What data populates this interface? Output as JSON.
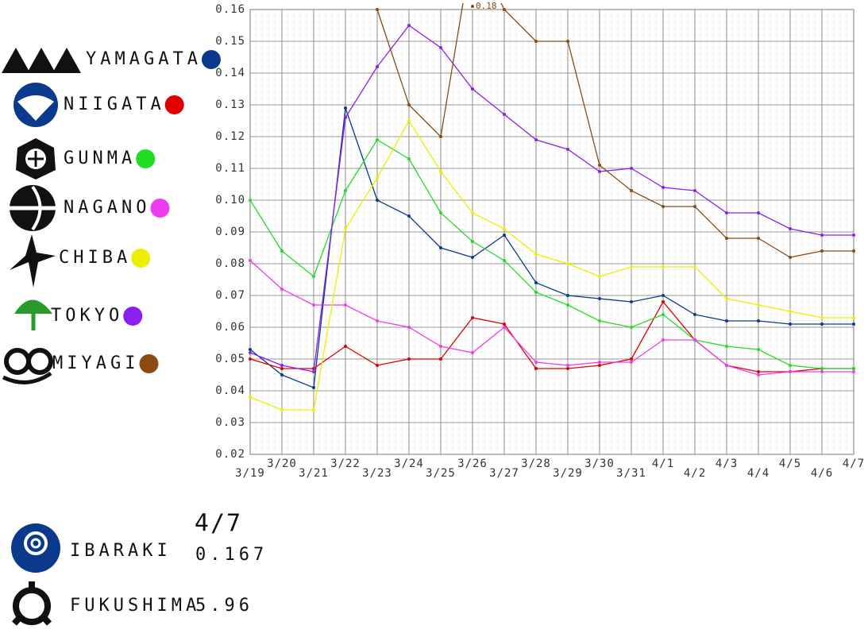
{
  "chart_data": {
    "type": "line",
    "categories": [
      "3/19",
      "3/20",
      "3/21",
      "3/22",
      "3/23",
      "3/24",
      "3/25",
      "3/26",
      "3/27",
      "3/28",
      "3/29",
      "3/30",
      "3/31",
      "4/1",
      "4/2",
      "4/3",
      "4/4",
      "4/5",
      "4/6",
      "4/7"
    ],
    "ylim": [
      0.02,
      0.16
    ],
    "yticks": [
      0.02,
      0.03,
      0.04,
      0.05,
      0.06,
      0.07,
      0.08,
      0.09,
      {
        "value": 0.1,
        "label": "0.10"
      },
      0.11,
      0.12,
      0.13,
      0.14,
      0.15,
      0.16
    ],
    "grid": true,
    "legend": "left",
    "series": [
      {
        "name": "YAMAGATA",
        "color": "#0b3a8c",
        "values": [
          0.053,
          0.045,
          0.041,
          0.129,
          0.1,
          0.095,
          0.085,
          0.082,
          0.089,
          0.074,
          0.07,
          0.069,
          0.068,
          0.07,
          0.064,
          0.062,
          0.062,
          0.061,
          0.061,
          0.061
        ]
      },
      {
        "name": "NIIGATA",
        "color": "#e00000",
        "values": [
          0.05,
          0.047,
          0.047,
          0.054,
          0.048,
          0.05,
          0.05,
          0.063,
          0.061,
          0.047,
          0.047,
          0.048,
          0.05,
          0.068,
          0.056,
          0.048,
          0.046,
          0.046,
          0.047,
          0.047
        ]
      },
      {
        "name": "GUNMA",
        "color": "#22dd22",
        "values": [
          0.1,
          0.084,
          0.076,
          0.103,
          0.119,
          0.113,
          0.096,
          0.087,
          0.081,
          0.071,
          0.067,
          0.062,
          0.06,
          0.064,
          0.056,
          0.054,
          0.053,
          0.048,
          0.047,
          0.047
        ]
      },
      {
        "name": "NAGANO",
        "color": "#f03cf0",
        "values": [
          0.081,
          0.072,
          0.067,
          0.067,
          0.062,
          0.06,
          0.054,
          0.052,
          0.06,
          0.049,
          0.048,
          0.049,
          0.049,
          0.056,
          0.056,
          0.048,
          0.045,
          0.046,
          0.046,
          0.046
        ]
      },
      {
        "name": "CHIBA",
        "color": "#eeee00",
        "values": [
          0.038,
          0.034,
          0.034,
          0.091,
          0.107,
          0.125,
          0.109,
          0.096,
          0.091,
          0.083,
          0.08,
          0.076,
          0.079,
          0.079,
          0.079,
          0.069,
          0.067,
          0.065,
          0.063,
          0.063
        ]
      },
      {
        "name": "TOKYO",
        "color": "#8a1ff0",
        "values": [
          0.052,
          0.048,
          0.046,
          0.126,
          0.142,
          0.155,
          0.148,
          0.135,
          0.127,
          0.119,
          0.116,
          0.109,
          0.11,
          0.104,
          0.103,
          0.096,
          0.096,
          0.091,
          0.089,
          0.089
        ]
      },
      {
        "name": "MIYAGI",
        "color": "#8b4a14",
        "values": [
          null,
          null,
          null,
          null,
          0.16,
          0.13,
          0.12,
          0.18,
          0.16,
          0.15,
          0.15,
          0.111,
          0.103,
          0.098,
          0.098,
          0.088,
          0.088,
          0.082,
          0.084,
          0.084
        ]
      }
    ],
    "notes": {
      "date": "4/7",
      "items": [
        {
          "name": "IBARAKI",
          "value": 0.167
        },
        {
          "name": "FUKUSHIMA",
          "value": 5.96
        }
      ]
    }
  }
}
